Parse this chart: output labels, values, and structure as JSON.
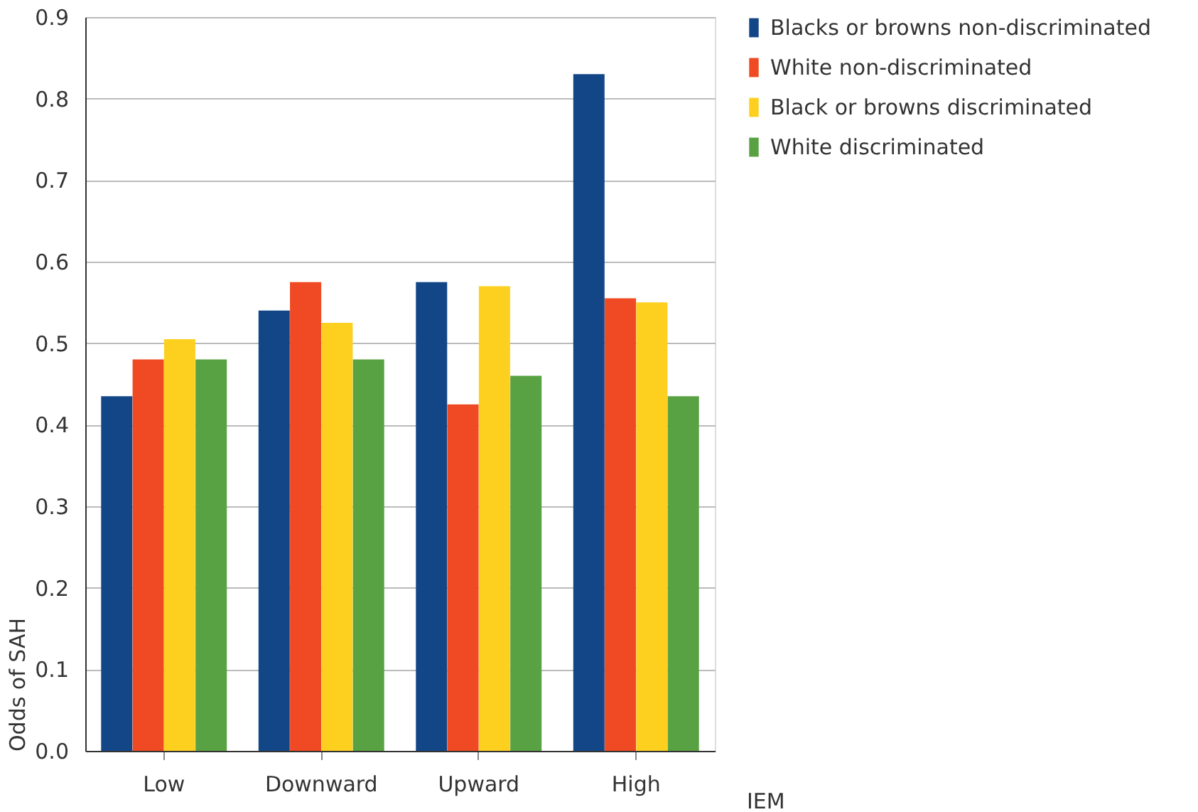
{
  "chart_data": {
    "type": "bar",
    "xlabel": "IEM",
    "ylabel": "Odds of SAH",
    "categories": [
      "Low",
      "Downward",
      "Upward",
      "High"
    ],
    "series": [
      {
        "name": "Blacks or browns non-discriminated",
        "color": "#134686",
        "values": [
          0.435,
          0.54,
          0.575,
          0.83
        ]
      },
      {
        "name": "White non-discriminated",
        "color": "#ef4a23",
        "values": [
          0.48,
          0.575,
          0.425,
          0.555
        ]
      },
      {
        "name": "Black or browns discriminated",
        "color": "#fdd020",
        "values": [
          0.505,
          0.525,
          0.57,
          0.55
        ]
      },
      {
        "name": "White discriminated",
        "color": "#58a243",
        "values": [
          0.48,
          0.48,
          0.46,
          0.435
        ]
      }
    ],
    "ylim": [
      0,
      0.9
    ],
    "yticks": [
      {
        "value": 0,
        "label": "0.0"
      },
      0.1,
      0.2,
      0.3,
      0.4,
      0.5,
      0.6,
      0.7,
      0.8,
      0.9
    ],
    "grid": "y",
    "legend": "top right"
  }
}
